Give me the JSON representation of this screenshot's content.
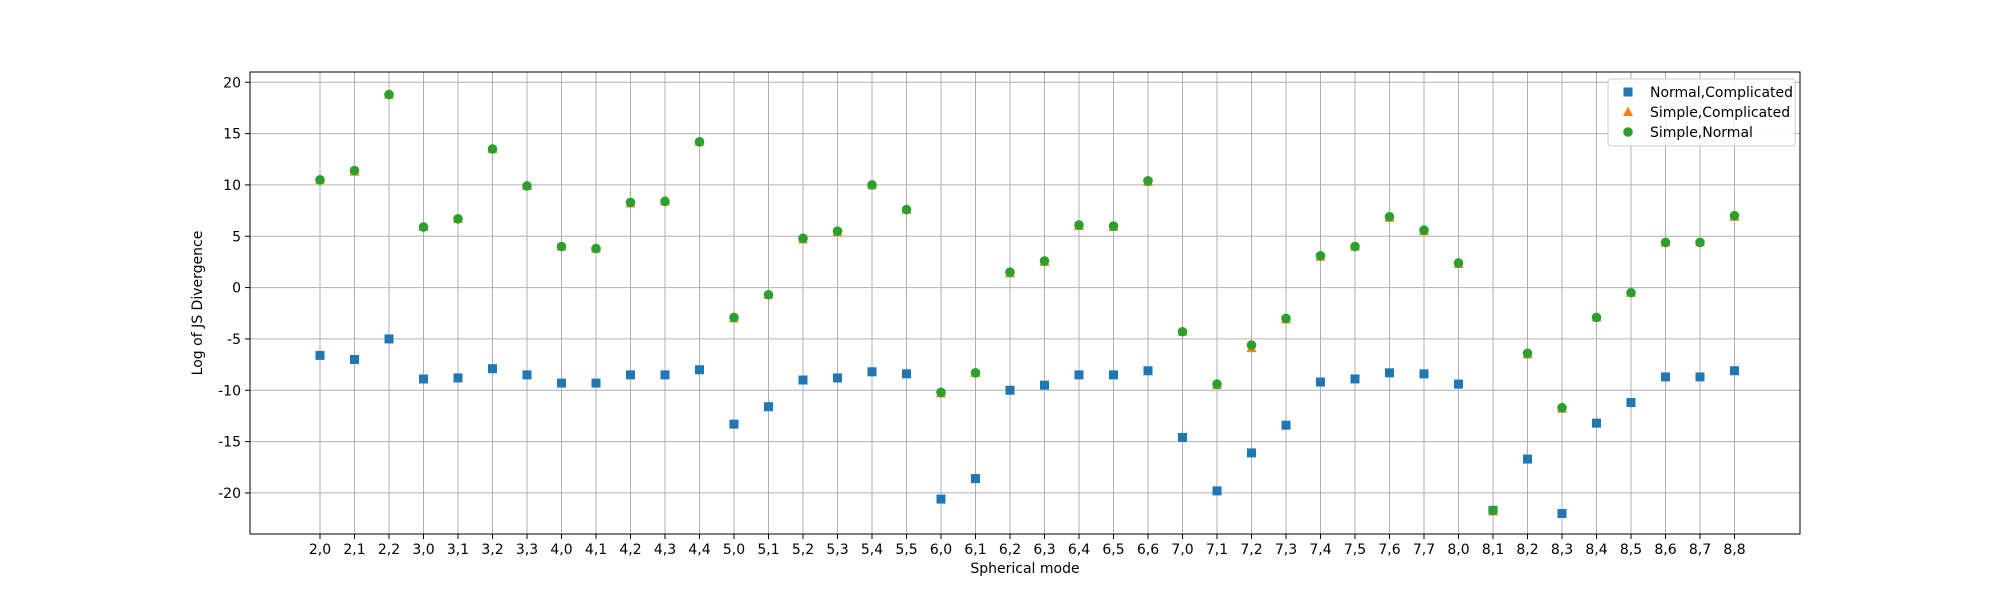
{
  "chart_data": {
    "type": "scatter",
    "title": "",
    "xlabel": "Spherical mode",
    "ylabel": "Log of JS Divergence",
    "ylim": [
      -24,
      21
    ],
    "yticks": [
      -20,
      -15,
      -10,
      -5,
      0,
      5,
      10,
      15,
      20
    ],
    "grid": true,
    "legend_position": "top-right",
    "categories": [
      "2,0",
      "2,1",
      "2,2",
      "3,0",
      "3,1",
      "3,2",
      "3,3",
      "4,0",
      "4,1",
      "4,2",
      "4,3",
      "4,4",
      "5,0",
      "5,1",
      "5,2",
      "5,3",
      "5,4",
      "5,5",
      "6,0",
      "6,1",
      "6,2",
      "6,3",
      "6,4",
      "6,5",
      "6,6",
      "7,0",
      "7,1",
      "7,2",
      "7,3",
      "7,4",
      "7,5",
      "7,6",
      "7,7",
      "8,0",
      "8,1",
      "8,2",
      "8,3",
      "8,4",
      "8,5",
      "8,6",
      "8,7",
      "8,8"
    ],
    "series": [
      {
        "name": "Normal,Complicated",
        "marker": "square",
        "color": "#1f77b4",
        "values": [
          -6.6,
          -7.0,
          -5.0,
          -8.9,
          -8.8,
          -7.9,
          -8.5,
          -9.3,
          -9.3,
          -8.5,
          -8.5,
          -8.0,
          -13.3,
          -11.6,
          -9.0,
          -8.8,
          -8.2,
          -8.4,
          -20.6,
          -18.6,
          -10.0,
          -9.5,
          -8.5,
          -8.5,
          -8.1,
          -14.6,
          -19.8,
          -16.1,
          -13.4,
          -9.2,
          -8.9,
          -8.3,
          -8.4,
          -9.4,
          -21.7,
          -16.7,
          -22.0,
          -13.2,
          -11.2,
          -8.7,
          -8.7,
          -8.1
        ]
      },
      {
        "name": "Simple,Complicated",
        "marker": "triangle",
        "color": "#ff7f0e",
        "values": [
          10.5,
          11.3,
          18.8,
          5.9,
          6.7,
          13.5,
          9.9,
          4.0,
          3.8,
          8.2,
          8.4,
          14.2,
          -3.0,
          -0.7,
          4.7,
          5.4,
          10.0,
          7.6,
          -10.3,
          -8.3,
          1.4,
          2.5,
          6.0,
          5.9,
          10.3,
          -4.3,
          -9.5,
          -5.9,
          -3.1,
          3.0,
          4.0,
          6.8,
          5.5,
          2.3,
          -21.8,
          -6.5,
          -11.8,
          -2.9,
          -0.5,
          4.4,
          4.4,
          6.9
        ]
      },
      {
        "name": "Simple,Normal",
        "marker": "circle",
        "color": "#2ca02c",
        "values": [
          10.5,
          11.4,
          18.8,
          5.9,
          6.7,
          13.5,
          9.9,
          4.0,
          3.8,
          8.3,
          8.4,
          14.2,
          -2.9,
          -0.7,
          4.8,
          5.5,
          10.0,
          7.6,
          -10.2,
          -8.3,
          1.5,
          2.6,
          6.1,
          6.0,
          10.4,
          -4.3,
          -9.4,
          -5.6,
          -3.0,
          3.1,
          4.0,
          6.9,
          5.6,
          2.4,
          -21.7,
          -6.4,
          -11.7,
          -2.9,
          -0.5,
          4.4,
          4.4,
          7.0
        ]
      }
    ]
  }
}
